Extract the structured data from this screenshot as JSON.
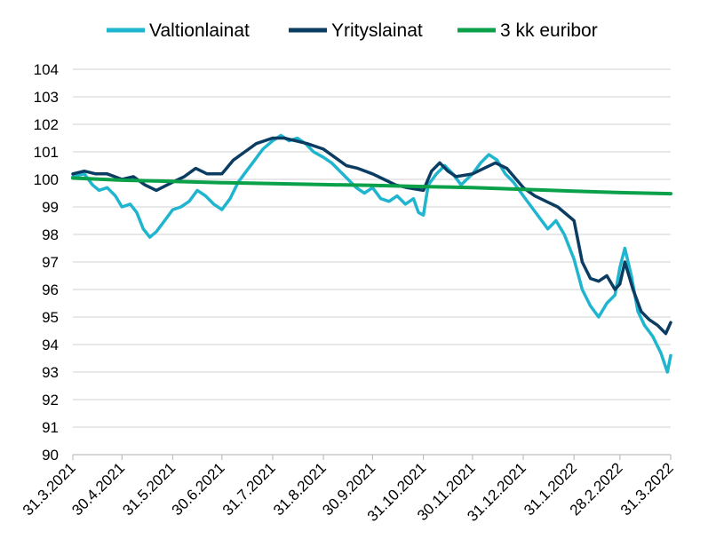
{
  "chart_data": {
    "type": "line",
    "title": "",
    "xlabel": "",
    "ylabel": "",
    "ylim": [
      90,
      104
    ],
    "grid": true,
    "legend_position": "top",
    "yticks": [
      "90",
      "91",
      "92",
      "93",
      "94",
      "95",
      "96",
      "97",
      "98",
      "99",
      "100",
      "101",
      "102",
      "103",
      "104"
    ],
    "xticks": [
      "31.3.2021",
      "30.4.2021",
      "31.5.2021",
      "30.6.2021",
      "31.7.2021",
      "31.8.2021",
      "30.9.2021",
      "31.10.2021",
      "30.11.2021",
      "31.12.2021",
      "31.1.2022",
      "28.2.2022",
      "31.3.2022"
    ],
    "xlim": [
      "31.3.2021",
      "31.3.2022"
    ],
    "series": [
      {
        "name": "Valtionlainat",
        "color": "#1fb5cf",
        "points": [
          [
            "31.3.2021",
            100.1
          ],
          [
            "7.4.2021",
            100.2
          ],
          [
            "12.4.2021",
            99.8
          ],
          [
            "16.4.2021",
            99.6
          ],
          [
            "21.4.2021",
            99.7
          ],
          [
            "26.4.2021",
            99.4
          ],
          [
            "30.4.2021",
            99.0
          ],
          [
            "5.5.2021",
            99.1
          ],
          [
            "9.5.2021",
            98.8
          ],
          [
            "13.5.2021",
            98.2
          ],
          [
            "17.5.2021",
            97.9
          ],
          [
            "21.5.2021",
            98.1
          ],
          [
            "26.5.2021",
            98.5
          ],
          [
            "31.5.2021",
            98.9
          ],
          [
            "5.6.2021",
            99.0
          ],
          [
            "10.6.2021",
            99.2
          ],
          [
            "15.6.2021",
            99.6
          ],
          [
            "20.6.2021",
            99.4
          ],
          [
            "25.6.2021",
            99.1
          ],
          [
            "30.6.2021",
            98.9
          ],
          [
            "5.7.2021",
            99.3
          ],
          [
            "10.7.2021",
            99.9
          ],
          [
            "15.7.2021",
            100.3
          ],
          [
            "20.7.2021",
            100.7
          ],
          [
            "25.7.2021",
            101.1
          ],
          [
            "31.7.2021",
            101.4
          ],
          [
            "5.8.2021",
            101.6
          ],
          [
            "10.8.2021",
            101.4
          ],
          [
            "15.8.2021",
            101.5
          ],
          [
            "20.8.2021",
            101.3
          ],
          [
            "25.8.2021",
            101.0
          ],
          [
            "31.8.2021",
            100.8
          ],
          [
            "5.9.2021",
            100.6
          ],
          [
            "10.9.2021",
            100.3
          ],
          [
            "15.9.2021",
            100.0
          ],
          [
            "20.9.2021",
            99.7
          ],
          [
            "25.9.2021",
            99.5
          ],
          [
            "30.9.2021",
            99.7
          ],
          [
            "5.10.2021",
            99.3
          ],
          [
            "10.10.2021",
            99.2
          ],
          [
            "15.10.2021",
            99.4
          ],
          [
            "20.10.2021",
            99.1
          ],
          [
            "25.10.2021",
            99.3
          ],
          [
            "28.10.2021",
            98.8
          ],
          [
            "31.10.2021",
            98.7
          ],
          [
            "3.11.2021",
            99.8
          ],
          [
            "8.11.2021",
            100.2
          ],
          [
            "13.11.2021",
            100.5
          ],
          [
            "18.11.2021",
            100.2
          ],
          [
            "23.11.2021",
            99.8
          ],
          [
            "30.11.2021",
            100.2
          ],
          [
            "5.12.2021",
            100.6
          ],
          [
            "10.12.2021",
            100.9
          ],
          [
            "15.12.2021",
            100.7
          ],
          [
            "20.12.2021",
            100.2
          ],
          [
            "25.12.2021",
            99.9
          ],
          [
            "31.12.2021",
            99.4
          ],
          [
            "5.1.2022",
            99.0
          ],
          [
            "10.1.2022",
            98.6
          ],
          [
            "15.1.2022",
            98.2
          ],
          [
            "20.1.2022",
            98.5
          ],
          [
            "25.1.2022",
            98.0
          ],
          [
            "31.1.2022",
            97.1
          ],
          [
            "5.2.2022",
            96.0
          ],
          [
            "10.2.2022",
            95.4
          ],
          [
            "15.2.2022",
            95.0
          ],
          [
            "20.2.2022",
            95.5
          ],
          [
            "25.2.2022",
            95.8
          ],
          [
            "28.2.2022",
            96.8
          ],
          [
            "3.3.2022",
            97.5
          ],
          [
            "7.3.2022",
            96.5
          ],
          [
            "11.3.2022",
            95.2
          ],
          [
            "15.3.2022",
            94.7
          ],
          [
            "20.3.2022",
            94.3
          ],
          [
            "25.3.2022",
            93.7
          ],
          [
            "29.3.2022",
            93.0
          ],
          [
            "31.3.2022",
            93.6
          ]
        ]
      },
      {
        "name": "Yrityslainat",
        "color": "#0b3c62",
        "points": [
          [
            "31.3.2021",
            100.2
          ],
          [
            "7.4.2021",
            100.3
          ],
          [
            "14.4.2021",
            100.2
          ],
          [
            "21.4.2021",
            100.2
          ],
          [
            "30.4.2021",
            100.0
          ],
          [
            "7.5.2021",
            100.1
          ],
          [
            "14.5.2021",
            99.8
          ],
          [
            "21.5.2021",
            99.6
          ],
          [
            "31.5.2021",
            99.9
          ],
          [
            "7.6.2021",
            100.1
          ],
          [
            "14.6.2021",
            100.4
          ],
          [
            "21.6.2021",
            100.2
          ],
          [
            "30.6.2021",
            100.2
          ],
          [
            "7.7.2021",
            100.7
          ],
          [
            "14.7.2021",
            101.0
          ],
          [
            "21.7.2021",
            101.3
          ],
          [
            "31.7.2021",
            101.5
          ],
          [
            "7.8.2021",
            101.5
          ],
          [
            "14.8.2021",
            101.4
          ],
          [
            "21.8.2021",
            101.3
          ],
          [
            "31.8.2021",
            101.1
          ],
          [
            "7.9.2021",
            100.8
          ],
          [
            "14.9.2021",
            100.5
          ],
          [
            "21.9.2021",
            100.4
          ],
          [
            "30.9.2021",
            100.2
          ],
          [
            "7.10.2021",
            100.0
          ],
          [
            "14.10.2021",
            99.8
          ],
          [
            "21.10.2021",
            99.7
          ],
          [
            "31.10.2021",
            99.6
          ],
          [
            "5.11.2021",
            100.3
          ],
          [
            "10.11.2021",
            100.6
          ],
          [
            "15.11.2021",
            100.3
          ],
          [
            "20.11.2021",
            100.1
          ],
          [
            "30.11.2021",
            100.2
          ],
          [
            "7.12.2021",
            100.4
          ],
          [
            "14.12.2021",
            100.6
          ],
          [
            "21.12.2021",
            100.4
          ],
          [
            "31.12.2021",
            99.7
          ],
          [
            "7.1.2022",
            99.4
          ],
          [
            "14.1.2022",
            99.2
          ],
          [
            "21.1.2022",
            99.0
          ],
          [
            "31.1.2022",
            98.5
          ],
          [
            "5.2.2022",
            97.0
          ],
          [
            "10.2.2022",
            96.4
          ],
          [
            "15.2.2022",
            96.3
          ],
          [
            "20.2.2022",
            96.5
          ],
          [
            "25.2.2022",
            96.0
          ],
          [
            "28.2.2022",
            96.2
          ],
          [
            "3.3.2022",
            97.0
          ],
          [
            "8.3.2022",
            96.0
          ],
          [
            "13.3.2022",
            95.2
          ],
          [
            "18.3.2022",
            94.9
          ],
          [
            "23.3.2022",
            94.7
          ],
          [
            "28.3.2022",
            94.4
          ],
          [
            "31.3.2022",
            94.8
          ]
        ]
      },
      {
        "name": "3 kk euribor",
        "color": "#0aa14a",
        "points": [
          [
            "31.3.2021",
            100.05
          ],
          [
            "30.4.2021",
            99.97
          ],
          [
            "31.5.2021",
            99.93
          ],
          [
            "30.6.2021",
            99.88
          ],
          [
            "31.7.2021",
            99.85
          ],
          [
            "31.8.2021",
            99.81
          ],
          [
            "30.9.2021",
            99.78
          ],
          [
            "31.10.2021",
            99.74
          ],
          [
            "30.11.2021",
            99.7
          ],
          [
            "31.12.2021",
            99.64
          ],
          [
            "31.1.2022",
            99.57
          ],
          [
            "28.2.2022",
            99.52
          ],
          [
            "31.3.2022",
            99.48
          ]
        ]
      }
    ]
  }
}
